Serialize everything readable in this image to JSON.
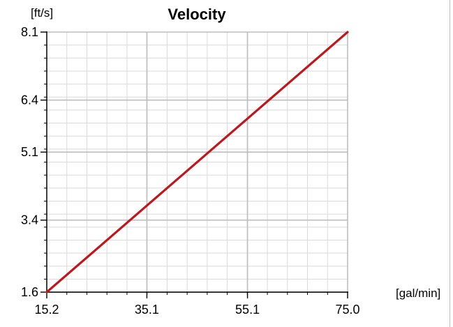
{
  "chart_data": {
    "type": "line",
    "title": "Velocity",
    "xlabel": "[gal/min]",
    "ylabel": "[ft/s]",
    "xlim": [
      15.2,
      75.0
    ],
    "ylim": [
      1.6,
      8.1
    ],
    "x_ticks": [
      15.2,
      35.1,
      55.1,
      75.0
    ],
    "x_tick_labels": [
      "15.2",
      "35.1",
      "55.1",
      "75.0"
    ],
    "y_ticks": [
      1.6,
      3.4,
      5.1,
      6.4,
      8.1
    ],
    "y_tick_labels": [
      "1.6",
      "3.4",
      "5.1",
      "6.4",
      "8.1"
    ],
    "grid": true,
    "legend": "none",
    "series": [
      {
        "color": "#c0161c",
        "x": [
          15.2,
          75.0
        ],
        "y": [
          1.6,
          8.1
        ]
      }
    ]
  },
  "colors": {
    "grid_minor": "#d9d9d9",
    "grid_major": "#bdbdbd",
    "axis": "#000000"
  }
}
